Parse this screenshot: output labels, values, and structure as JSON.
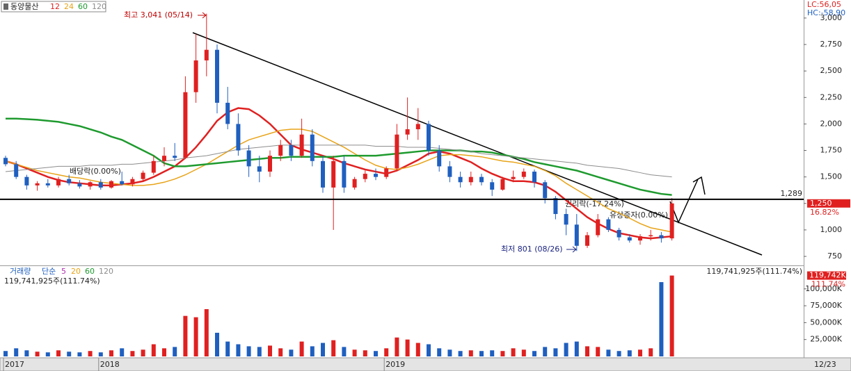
{
  "chart_data": [
    {
      "type": "candlestick",
      "title": "동양물산",
      "categories": [
        "2017",
        null,
        null,
        null,
        null,
        null,
        null,
        null,
        null,
        "2018",
        null,
        null,
        null,
        null,
        null,
        null,
        null,
        null,
        null,
        null,
        null,
        null,
        null,
        null,
        null,
        null,
        null,
        null,
        null,
        null,
        null,
        null,
        null,
        null,
        null,
        null,
        "2019",
        null,
        null,
        null,
        null,
        null,
        null,
        null,
        null,
        null,
        null,
        null,
        null,
        null,
        null,
        null,
        null,
        null,
        null,
        null,
        null,
        null,
        null,
        null,
        null,
        null,
        null,
        null
      ],
      "open": [
        1680,
        1620,
        1500,
        1420,
        1440,
        1420,
        1480,
        1440,
        1410,
        1450,
        1400,
        1460,
        1430,
        1480,
        1540,
        1650,
        1700,
        1680,
        2300,
        2600,
        2700,
        2200,
        2000,
        1750,
        1600,
        1550,
        1700,
        1800,
        1700,
        1900,
        1650,
        1400,
        1650,
        1400,
        1480,
        1530,
        1500,
        1580,
        1900,
        1950,
        2000,
        1750,
        1600,
        1500,
        1450,
        1500,
        1450,
        1380,
        1480,
        1500,
        1550,
        1450,
        1300,
        1150,
        1050,
        850,
        950,
        1100,
        1000,
        930,
        900,
        940,
        950,
        920
      ],
      "high": [
        1700,
        1650,
        1520,
        1460,
        1480,
        1500,
        1520,
        1470,
        1460,
        1480,
        1470,
        1550,
        1500,
        1560,
        1700,
        1780,
        1820,
        2450,
        2850,
        3041,
        2750,
        2350,
        2100,
        1800,
        1700,
        1750,
        1850,
        1850,
        2050,
        1950,
        1700,
        1700,
        1700,
        1500,
        1560,
        1580,
        1600,
        2000,
        2250,
        2150,
        2030,
        1800,
        1650,
        1550,
        1550,
        1530,
        1480,
        1500,
        1560,
        1580,
        1570,
        1470,
        1320,
        1200,
        1150,
        980,
        1150,
        1120,
        1020,
        960,
        960,
        1000,
        980,
        1300
      ],
      "low": [
        1600,
        1480,
        1380,
        1370,
        1400,
        1400,
        1420,
        1390,
        1380,
        1380,
        1390,
        1420,
        1410,
        1460,
        1520,
        1600,
        1650,
        1670,
        2200,
        2450,
        2100,
        1950,
        1700,
        1500,
        1450,
        1500,
        1650,
        1650,
        1680,
        1600,
        1350,
        1000,
        1350,
        1380,
        1450,
        1470,
        1480,
        1560,
        1850,
        1850,
        1700,
        1550,
        1450,
        1400,
        1420,
        1420,
        1320,
        1370,
        1450,
        1480,
        1400,
        1250,
        1100,
        950,
        801,
        830,
        930,
        980,
        900,
        880,
        860,
        900,
        880,
        900
      ],
      "close": [
        1620,
        1500,
        1420,
        1440,
        1420,
        1480,
        1440,
        1410,
        1450,
        1400,
        1460,
        1430,
        1480,
        1540,
        1650,
        1700,
        1680,
        2300,
        2600,
        2700,
        2200,
        2000,
        1750,
        1600,
        1550,
        1700,
        1800,
        1700,
        1900,
        1650,
        1400,
        1650,
        1400,
        1480,
        1530,
        1500,
        1580,
        1900,
        1950,
        2000,
        1750,
        1600,
        1500,
        1450,
        1500,
        1450,
        1380,
        1480,
        1500,
        1550,
        1450,
        1300,
        1150,
        1050,
        850,
        950,
        1100,
        1000,
        930,
        900,
        940,
        950,
        920,
        1250
      ],
      "series": [
        {
          "name": "12",
          "color": "#e02020",
          "values": [
            1650,
            1620,
            1580,
            1540,
            1500,
            1470,
            1450,
            1440,
            1430,
            1420,
            1420,
            1430,
            1440,
            1460,
            1500,
            1550,
            1600,
            1680,
            1780,
            1900,
            2030,
            2110,
            2150,
            2140,
            2080,
            2000,
            1900,
            1800,
            1760,
            1730,
            1700,
            1670,
            1630,
            1600,
            1570,
            1550,
            1530,
            1560,
            1610,
            1660,
            1720,
            1740,
            1720,
            1680,
            1640,
            1580,
            1530,
            1490,
            1460,
            1460,
            1450,
            1420,
            1360,
            1280,
            1200,
            1120,
            1060,
            1010,
            970,
            950,
            930,
            920,
            930,
            940
          ]
        },
        {
          "name": "24",
          "color": "#e8a317",
          "values": [
            1650,
            1620,
            1590,
            1560,
            1540,
            1520,
            1500,
            1490,
            1470,
            1450,
            1440,
            1430,
            1420,
            1420,
            1430,
            1450,
            1480,
            1520,
            1570,
            1620,
            1680,
            1740,
            1800,
            1850,
            1880,
            1910,
            1940,
            1950,
            1950,
            1930,
            1880,
            1830,
            1780,
            1720,
            1660,
            1610,
            1580,
            1570,
            1590,
            1620,
            1660,
            1700,
            1710,
            1710,
            1700,
            1690,
            1670,
            1650,
            1640,
            1620,
            1600,
            1560,
            1510,
            1440,
            1380,
            1320,
            1260,
            1200,
            1160,
            1110,
            1060,
            1020,
            1000,
            980
          ]
        },
        {
          "name": "60",
          "color": "#1e9a2e",
          "values": [
            2050,
            2050,
            2045,
            2040,
            2030,
            2020,
            2000,
            1980,
            1950,
            1920,
            1880,
            1850,
            1800,
            1750,
            1700,
            1630,
            1600,
            1600,
            1610,
            1620,
            1630,
            1640,
            1650,
            1660,
            1670,
            1680,
            1680,
            1690,
            1690,
            1690,
            1690,
            1690,
            1700,
            1700,
            1700,
            1700,
            1710,
            1720,
            1730,
            1740,
            1750,
            1750,
            1750,
            1750,
            1740,
            1740,
            1730,
            1710,
            1690,
            1670,
            1640,
            1620,
            1600,
            1580,
            1560,
            1530,
            1500,
            1470,
            1440,
            1410,
            1380,
            1360,
            1340,
            1330
          ]
        },
        {
          "name": "120",
          "color": "#8c8c8c",
          "values": [
            1550,
            1560,
            1570,
            1580,
            1590,
            1600,
            1600,
            1600,
            1610,
            1610,
            1610,
            1620,
            1620,
            1630,
            1640,
            1650,
            1660,
            1680,
            1690,
            1700,
            1720,
            1740,
            1760,
            1770,
            1780,
            1790,
            1800,
            1800,
            1800,
            1800,
            1800,
            1800,
            1800,
            1800,
            1800,
            1790,
            1790,
            1790,
            1780,
            1780,
            1780,
            1770,
            1760,
            1750,
            1740,
            1720,
            1710,
            1700,
            1690,
            1680,
            1670,
            1660,
            1650,
            1640,
            1630,
            1610,
            1600,
            1590,
            1580,
            1560,
            1540,
            1520,
            1510,
            1500
          ]
        }
      ],
      "ylim": [
        665,
        3170
      ],
      "yticks": [
        {
          "value": 750,
          "label": "750"
        },
        {
          "value": 1000,
          "label": "1,000"
        },
        {
          "value": 1250,
          "label": "1,250"
        },
        {
          "value": 1500,
          "label": "1,500"
        },
        {
          "value": 1750,
          "label": "1,750"
        },
        {
          "value": 2000,
          "label": "2,000"
        },
        {
          "value": 2250,
          "label": "2,250"
        },
        {
          "value": 2500,
          "label": "2,500"
        },
        {
          "value": 2750,
          "label": "2,750"
        },
        {
          "value": 3000,
          "label": "3,000"
        }
      ],
      "hline": {
        "value": 1289,
        "label": "1,289"
      },
      "current": {
        "value": 1250,
        "label": "1,250"
      },
      "change": "16.82%",
      "lc": "LC:56,05",
      "hc": "HC:-58,90",
      "annotations": [
        "최고 3,041 (05/14)",
        "최저 801 (08/26)",
        "배당락(0.00%)",
        "권리락(-17.24%)",
        "유상증자(0.00%)"
      ],
      "date_label": "12/23",
      "grid": false
    },
    {
      "type": "bar",
      "title": "거래량",
      "legend_title": "단순",
      "ma_labels": [
        "5",
        "20",
        "60",
        "120"
      ],
      "summary": "119,741,925주(111.74%)",
      "values": [
        8000,
        12000,
        9000,
        7000,
        6000,
        9000,
        7000,
        6000,
        8000,
        6000,
        9000,
        12000,
        8000,
        10000,
        18000,
        12000,
        14000,
        60000,
        58000,
        70000,
        35000,
        22000,
        18000,
        15000,
        14000,
        16000,
        12000,
        10000,
        22000,
        15000,
        20000,
        24000,
        14000,
        10000,
        9000,
        8000,
        12000,
        28000,
        25000,
        20000,
        18000,
        12000,
        10000,
        8000,
        9000,
        8000,
        9000,
        8000,
        12000,
        10000,
        8000,
        14000,
        12000,
        20000,
        22000,
        15000,
        14000,
        10000,
        8000,
        9000,
        10000,
        12000,
        110000,
        119742
      ],
      "ylim": [
        0,
        132700
      ],
      "yticks": [
        {
          "value": 25000,
          "label": "25,000K"
        },
        {
          "value": 50000,
          "label": "50,000K"
        },
        {
          "value": 75000,
          "label": "75,000K"
        },
        {
          "value": 100000,
          "label": "100,000K"
        }
      ],
      "current": {
        "value": 119742,
        "label": "119,742K"
      },
      "ratio": "111.74%"
    }
  ]
}
